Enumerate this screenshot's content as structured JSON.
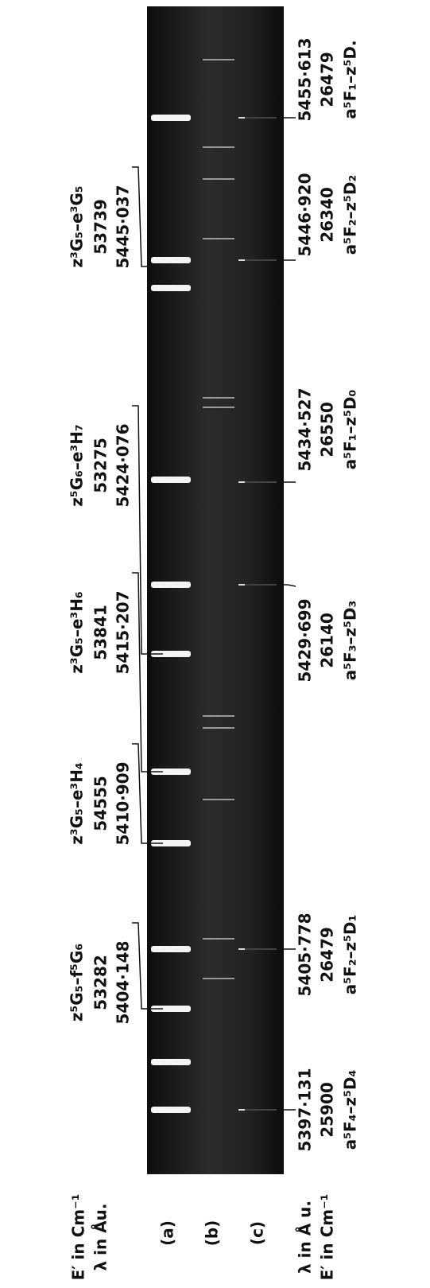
{
  "left_labels": [
    {
      "term": "z⁵G₅–f⁵G₆",
      "energy": "53282",
      "wavelength": "5404·148"
    },
    {
      "term": "z³G₅–e³H₄",
      "energy": "54555",
      "wavelength": "5410·909"
    },
    {
      "term": "z³G₅–e³H₆",
      "energy": "53841",
      "wavelength": "5415·207"
    },
    {
      "term": "z⁵G₆–e³H₇",
      "energy": "53275",
      "wavelength": "5424·076"
    },
    {
      "term": "z³G₅–e³G₅",
      "energy": "53739",
      "wavelength": "5445·037"
    }
  ],
  "right_labels": [
    {
      "wavelength": "5397·131",
      "energy": "25900",
      "term": "a⁵F₄–z⁵D₄"
    },
    {
      "wavelength": "5405·778",
      "energy": "26479",
      "term": "a⁵F₂–z⁵D₁"
    },
    {
      "wavelength": "5429·699",
      "energy": "26140",
      "term": "a⁵F₃–z⁵D₃"
    },
    {
      "wavelength": "5434·527",
      "energy": "26550",
      "term": "a⁵F₁–z⁵D₀"
    },
    {
      "wavelength": "5446·920",
      "energy": "26340",
      "term": "a⁵F₂–z⁵D₂"
    },
    {
      "wavelength": "5455·613",
      "energy": "26479",
      "term": "a⁵F₁–z⁵D."
    }
  ],
  "legend": {
    "energy_top": "E′ in Cm⁻¹",
    "wavelength_top": "λ in Åu.",
    "rows": [
      "(a)",
      "(b)",
      "(c)"
    ],
    "wavelength_bottom": "λ in Å u.",
    "energy_bottom": "E′ in Cm⁻¹"
  }
}
